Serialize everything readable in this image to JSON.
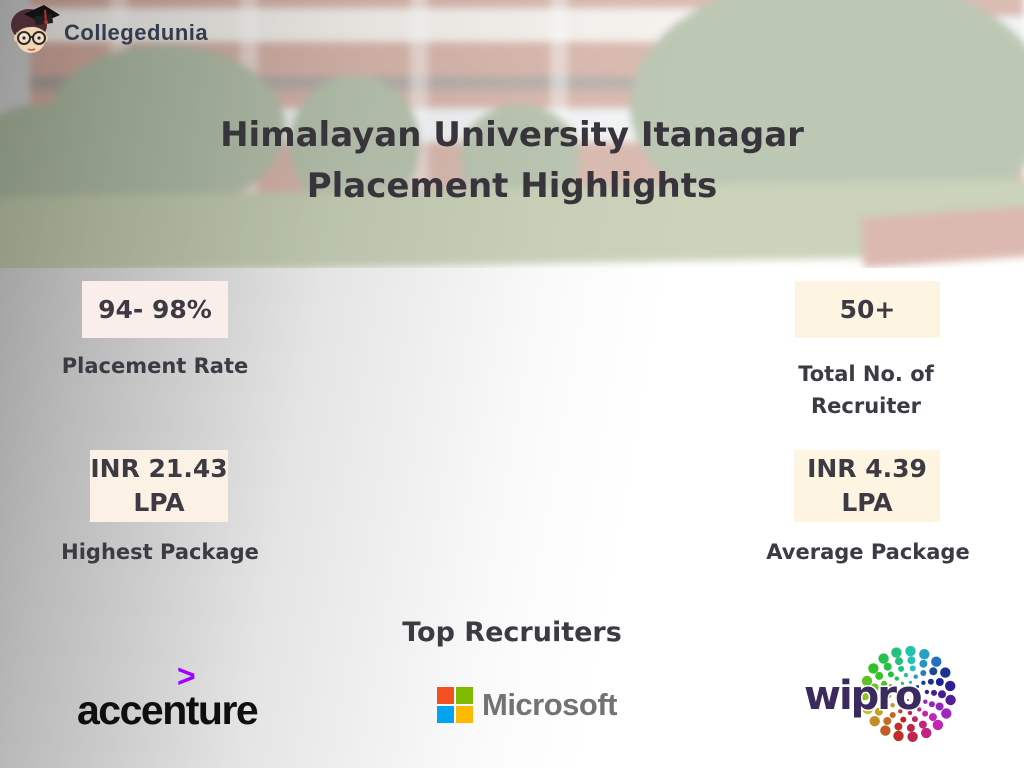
{
  "brand": {
    "name": "Collegedunia"
  },
  "header": {
    "title_line1": "Himalayan University Itanagar",
    "title_line2": "Placement Highlights"
  },
  "stats": {
    "placement_rate": {
      "value": "94- 98%",
      "label": "Placement Rate"
    },
    "total_recruiters": {
      "value": "50+",
      "label": "Total No. of Recruiter"
    },
    "highest_package": {
      "value": "INR 21.43 LPA",
      "label": "Highest Package"
    },
    "average_package": {
      "value": "INR 4.39 LPA",
      "label": "Average Package"
    }
  },
  "recruiters_section": {
    "heading": "Top Recruiters",
    "accenture": {
      "text": "accenture",
      "symbol": ">"
    },
    "microsoft": {
      "text": "Microsoft"
    },
    "wipro": {
      "text": "wipro"
    }
  },
  "colors": {
    "accenture_purple": "#a100ff",
    "microsoft_gray": "#737373",
    "ms_red": "#f25022",
    "ms_green": "#7fba00",
    "ms_blue": "#00a4ef",
    "ms_yellow": "#ffb900",
    "wipro_text": "#3a2a5e",
    "stat_box_blush": "#f9eeea",
    "stat_box_cream": "#fdf5e2",
    "stat_box_cream2": "#fbf1e4",
    "title_dark": "#38343b"
  }
}
